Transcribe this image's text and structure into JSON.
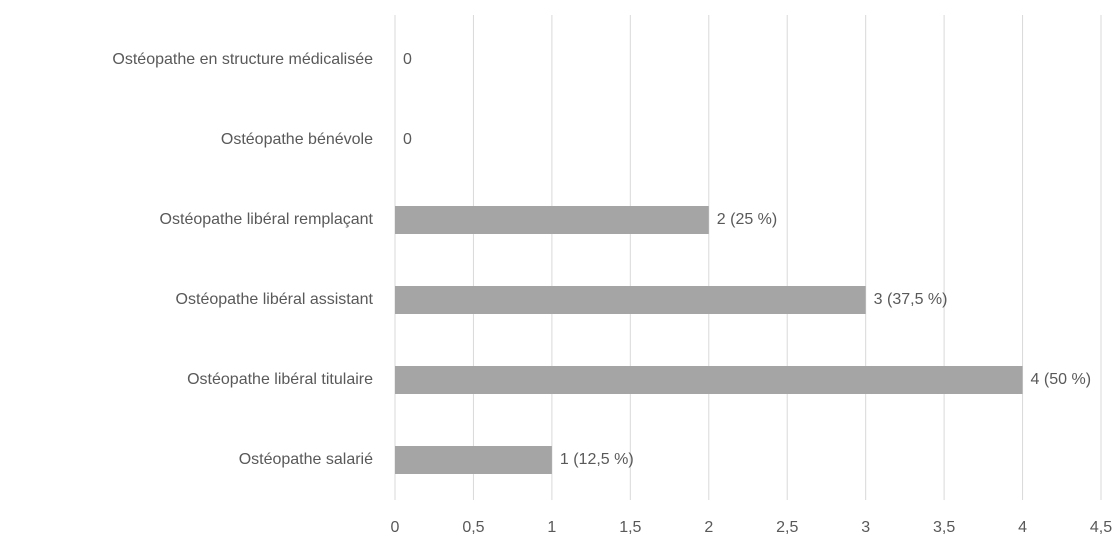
{
  "chart_data": {
    "type": "bar",
    "orientation": "horizontal",
    "categories": [
      "Ostéopathe en structure médicalisée",
      "Ostéopathe bénévole",
      "Ostéopathe libéral remplaçant",
      "Ostéopathe libéral assistant",
      "Ostéopathe libéral titulaire",
      "Ostéopathe salarié"
    ],
    "values": [
      0,
      0,
      2,
      3,
      4,
      1
    ],
    "value_labels": [
      "0",
      "0",
      "2 (25 %)",
      "3 (37,5 %)",
      "4 (50 %)",
      "1 (12,5 %)"
    ],
    "color": "#a5a5a5",
    "xlim": [
      0,
      4.5
    ],
    "xticks": [
      0,
      {
        "value": 0.5,
        "label": "0,5"
      },
      1,
      {
        "value": 1.5,
        "label": "1,5"
      },
      2,
      {
        "value": 2.5,
        "label": "2,5"
      },
      3,
      {
        "value": 3.5,
        "label": "3,5"
      },
      4,
      {
        "value": 4.5,
        "label": "4,5"
      }
    ],
    "grid": true
  }
}
